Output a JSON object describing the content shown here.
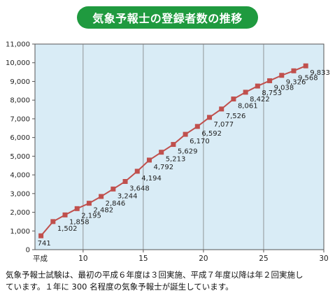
{
  "title": "気象予報士の登録者数の推移",
  "caption_lines": [
    "気象予報士試験は、最初の平成６年度は３回実施、平成７年度以降は年２回実施し",
    "ています。１年に 300 名程度の気象予報士が誕生しています。"
  ],
  "colors": {
    "title_bg": "#1f9a3f",
    "plot_bg": "#d9ecf6",
    "series": "#c0504d",
    "gridline": "#7f7f7f"
  },
  "chart_data": {
    "type": "line",
    "xlabel": "平成",
    "ylabel": "",
    "xlim": [
      6,
      30
    ],
    "ylim": [
      0,
      11000
    ],
    "x_ticks": [
      "10",
      "15",
      "20",
      "25",
      "30"
    ],
    "y_ticks": [
      "0",
      "1,000",
      "2,000",
      "3,000",
      "4,000",
      "5,000",
      "6,000",
      "7,000",
      "8,000",
      "9,000",
      "10,000",
      "11,000"
    ],
    "grid": "vertical",
    "x": [
      6.5,
      7.5,
      8.5,
      9.5,
      10.5,
      11.5,
      12.5,
      13.5,
      14.5,
      15.5,
      16.5,
      17.5,
      18.5,
      19.5,
      20.5,
      21.5,
      22.5,
      23.5,
      24.5,
      25.5,
      26.5,
      27.5,
      28.5
    ],
    "values": [
      741,
      1502,
      1858,
      2195,
      2482,
      2846,
      3244,
      3648,
      4194,
      4792,
      5213,
      5629,
      6170,
      6592,
      7077,
      7526,
      8061,
      8422,
      8753,
      9038,
      9326,
      9568,
      9833
    ],
    "labels": [
      "741",
      "1,502",
      "1,858",
      "2,195",
      "2,482",
      "2,846",
      "3,244",
      "3,648",
      "4,194",
      "4,792",
      "5,213",
      "5,629",
      "6,170",
      "6,592",
      "7,077",
      "7,526",
      "8,061",
      "8,422",
      "8,753",
      "9,038",
      "9,326",
      "9,568",
      "9,833"
    ]
  }
}
